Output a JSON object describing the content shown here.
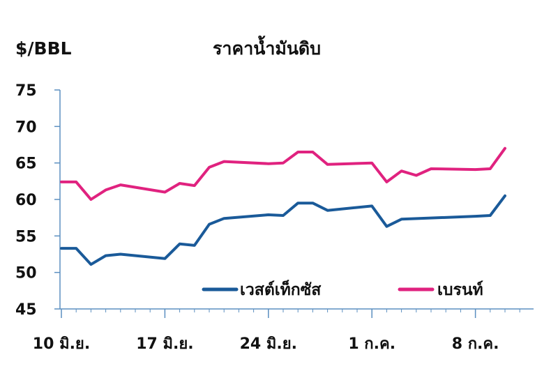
{
  "chart_data": {
    "type": "line",
    "title": "ราคาน้ำมันดิบ",
    "ylabel": "$/BBL",
    "xlabel": "",
    "ylim": [
      45,
      75
    ],
    "yticks": [
      "75",
      "70",
      "65",
      "60",
      "55",
      "50",
      "45"
    ],
    "xtick_labels": [
      {
        "day": 0,
        "label": "10 มิ.ย."
      },
      {
        "day": 7,
        "label": "17 มิ.ย."
      },
      {
        "day": 14,
        "label": "24 มิ.ย."
      },
      {
        "day": 21,
        "label": "1 ก.ค."
      },
      {
        "day": 28,
        "label": "8 ก.ค."
      }
    ],
    "grid": false,
    "legend_position": "bottom-right",
    "series": [
      {
        "name": "เวสต์เท็กซัส",
        "color": "#1a5a99",
        "x": [
          0,
          1,
          2,
          3,
          4,
          7,
          8,
          9,
          10,
          11,
          14,
          15,
          16,
          17,
          18,
          21,
          22,
          23,
          28,
          29,
          30
        ],
        "values": [
          53.3,
          53.3,
          51.1,
          52.3,
          52.5,
          51.9,
          53.9,
          53.7,
          56.6,
          57.4,
          57.9,
          57.8,
          59.5,
          59.5,
          58.5,
          59.1,
          56.3,
          57.3,
          57.7,
          57.8,
          60.5
        ]
      },
      {
        "name": "เบรนท์",
        "color": "#e0227f",
        "x": [
          0,
          1,
          2,
          3,
          4,
          7,
          8,
          9,
          10,
          11,
          14,
          15,
          16,
          17,
          18,
          21,
          22,
          23,
          24,
          25,
          28,
          29,
          30
        ],
        "values": [
          62.4,
          62.4,
          60.0,
          61.3,
          62.0,
          61.0,
          62.2,
          61.9,
          64.4,
          65.2,
          64.9,
          65.0,
          66.5,
          66.5,
          64.8,
          65.0,
          62.4,
          63.9,
          63.3,
          64.2,
          64.1,
          64.2,
          67.0
        ]
      }
    ]
  }
}
